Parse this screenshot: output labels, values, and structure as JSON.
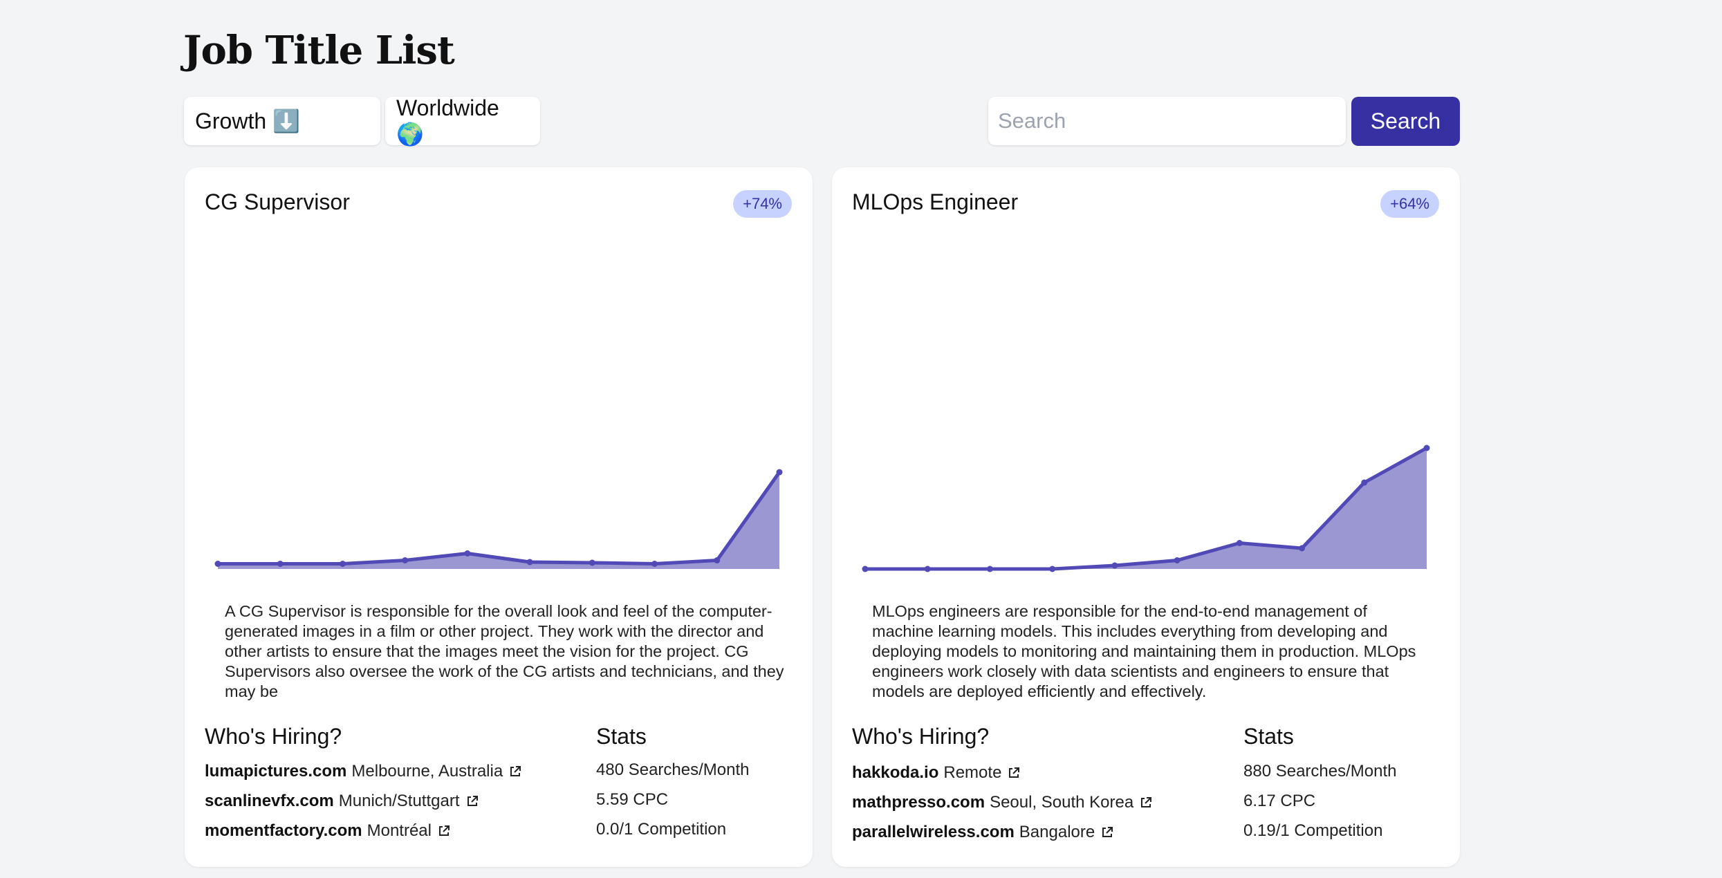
{
  "page": {
    "title": "Job Title List"
  },
  "filters": {
    "sort_label": "Growth ⬇️",
    "region_label": "Worldwide 🌍"
  },
  "search": {
    "placeholder": "Search",
    "button_label": "Search"
  },
  "colors": {
    "accent": "#3730a3",
    "chart_line": "#5149b5",
    "chart_fill": "#9b97d3",
    "badge_bg": "#c7d2fe"
  },
  "icons": {
    "external_link": "external-link-icon"
  },
  "cards": [
    {
      "title": "CG Supervisor",
      "growth": "+74%",
      "description": "A CG Supervisor is responsible for the overall look and feel of the computer-generated images in a film or other project. They work with the director and other artists to ensure that the images meet the vision for the project. CG Supervisors also oversee the work of the CG artists and technicians, and they may be",
      "hiring_heading": "Who's Hiring?",
      "stats_heading": "Stats",
      "companies": [
        {
          "domain": "lumapictures.com",
          "location": "Melbourne, Australia"
        },
        {
          "domain": "scanlinevfx.com",
          "location": "Munich/Stuttgart"
        },
        {
          "domain": "momentfactory.com",
          "location": "Montréal"
        }
      ],
      "stats": [
        "480 Searches/Month",
        "5.59 CPC",
        "0.0/1 Competition"
      ]
    },
    {
      "title": "MLOps Engineer",
      "growth": "+64%",
      "description": "MLOps engineers are responsible for the end-to-end management of machine learning models. This includes everything from developing and deploying models to monitoring and maintaining them in production. MLOps engineers work closely with data scientists and engineers to ensure that models are deployed efficiently and effectively.",
      "hiring_heading": "Who's Hiring?",
      "stats_heading": "Stats",
      "companies": [
        {
          "domain": "hakkoda.io",
          "location": "Remote"
        },
        {
          "domain": "mathpresso.com",
          "location": "Seoul, South Korea"
        },
        {
          "domain": "parallelwireless.com",
          "location": "Bangalore"
        }
      ],
      "stats": [
        "880 Searches/Month",
        "6.17 CPC",
        "0.19/1 Competition"
      ]
    }
  ],
  "chart_data": [
    {
      "type": "area",
      "series": [
        {
          "values": [
            1.5,
            1.5,
            1.5,
            2.5,
            4.5,
            2,
            1.8,
            1.5,
            2.5,
            28
          ]
        }
      ]
    },
    {
      "type": "area",
      "series": [
        {
          "values": [
            0,
            0,
            0,
            0,
            1,
            2.5,
            7.5,
            6,
            25,
            35
          ]
        }
      ]
    }
  ]
}
